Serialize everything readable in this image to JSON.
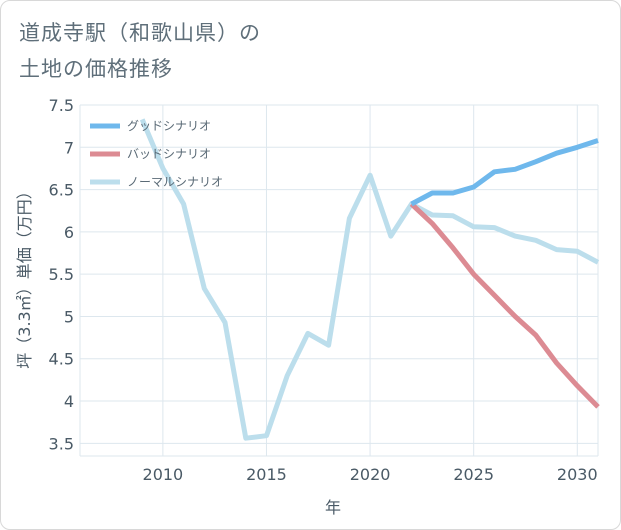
{
  "title": {
    "line1": "道成寺駅（和歌山県）の",
    "line2": "土地の価格推移"
  },
  "chart_data": {
    "type": "line",
    "xlabel": "年",
    "ylabel": "坪（3.3㎡）単価（万円）",
    "xlim": [
      2006,
      2031
    ],
    "ylim": [
      3.35,
      7.5
    ],
    "xticks": [
      2010,
      2015,
      2020,
      2025,
      2030
    ],
    "yticks": [
      3.5,
      4,
      4.5,
      5,
      5.5,
      6,
      6.5,
      7,
      7.5
    ],
    "xtick_labels": [
      "2010",
      "2015",
      "2020",
      "2025",
      "2030"
    ],
    "ytick_labels": [
      "3.5",
      "4",
      "4.5",
      "5",
      "5.5",
      "6",
      "6.5",
      "7",
      "7.5"
    ],
    "grid": true,
    "legend_position": "top-left",
    "series": [
      {
        "name": "グッドシナリオ",
        "color": "#6fb8ec",
        "x": [
          2022,
          2023,
          2024,
          2025,
          2026,
          2027,
          2028,
          2029,
          2030,
          2031
        ],
        "values": [
          6.33,
          6.46,
          6.46,
          6.53,
          6.71,
          6.74,
          6.83,
          6.93,
          7.0,
          7.08
        ]
      },
      {
        "name": "バッドシナリオ",
        "color": "#dc8b93",
        "x": [
          2022,
          2023,
          2024,
          2025,
          2026,
          2027,
          2028,
          2029,
          2030,
          2031
        ],
        "values": [
          6.33,
          6.1,
          5.81,
          5.5,
          5.25,
          5.0,
          4.78,
          4.45,
          4.18,
          3.93
        ]
      },
      {
        "name": "ノーマルシナリオ",
        "color": "#bcdeec",
        "x": [
          2009,
          2010,
          2011,
          2012,
          2013,
          2014,
          2015,
          2016,
          2017,
          2018,
          2019,
          2020,
          2021,
          2022,
          2023,
          2024,
          2025,
          2026,
          2027,
          2028,
          2029,
          2030,
          2031
        ],
        "values": [
          7.33,
          6.75,
          6.33,
          5.33,
          4.93,
          3.56,
          3.59,
          4.3,
          4.8,
          4.66,
          6.16,
          6.67,
          5.95,
          6.33,
          6.2,
          6.19,
          6.06,
          6.05,
          5.95,
          5.9,
          5.79,
          5.77,
          5.64
        ]
      }
    ]
  }
}
